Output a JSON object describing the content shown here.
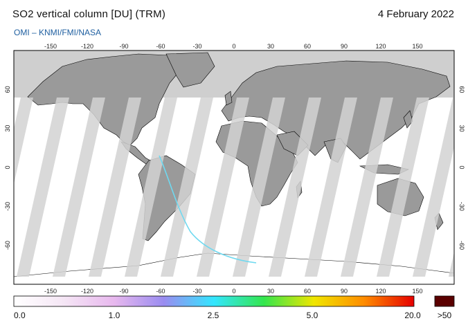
{
  "header": {
    "title": "SO2 vertical column [DU] (TRM)",
    "date": "4 February 2022",
    "subtitle": "OMI  –  KNMI/FMI/NASA"
  },
  "map": {
    "projection": "equirectangular",
    "lon_range": [
      -180,
      180
    ],
    "lat_range": [
      -90,
      90
    ],
    "lon_ticks": [
      "-150",
      "-120",
      "-90",
      "-60",
      "-30",
      "0",
      "30",
      "60",
      "90",
      "120",
      "150"
    ],
    "lat_ticks": [
      "60",
      "30",
      "0",
      "-30",
      "-60"
    ],
    "colors": {
      "no_data_pole": "#cfcfcf",
      "land": "#999999",
      "swath_gap": "#d3d3d3",
      "ocean_low": "#ffffff"
    }
  },
  "colorbar": {
    "labels": [
      "0.0",
      "1.0",
      "2.5",
      "5.0",
      "20.0"
    ],
    "overflow_label": ">50",
    "overflow_color": "#5a0000",
    "stops": [
      "#ffffff",
      "#f5e6f5",
      "#e8b8ee",
      "#9a8cf0",
      "#33e6ff",
      "#33e64d",
      "#f0e600",
      "#ff8c00",
      "#e60000"
    ]
  }
}
